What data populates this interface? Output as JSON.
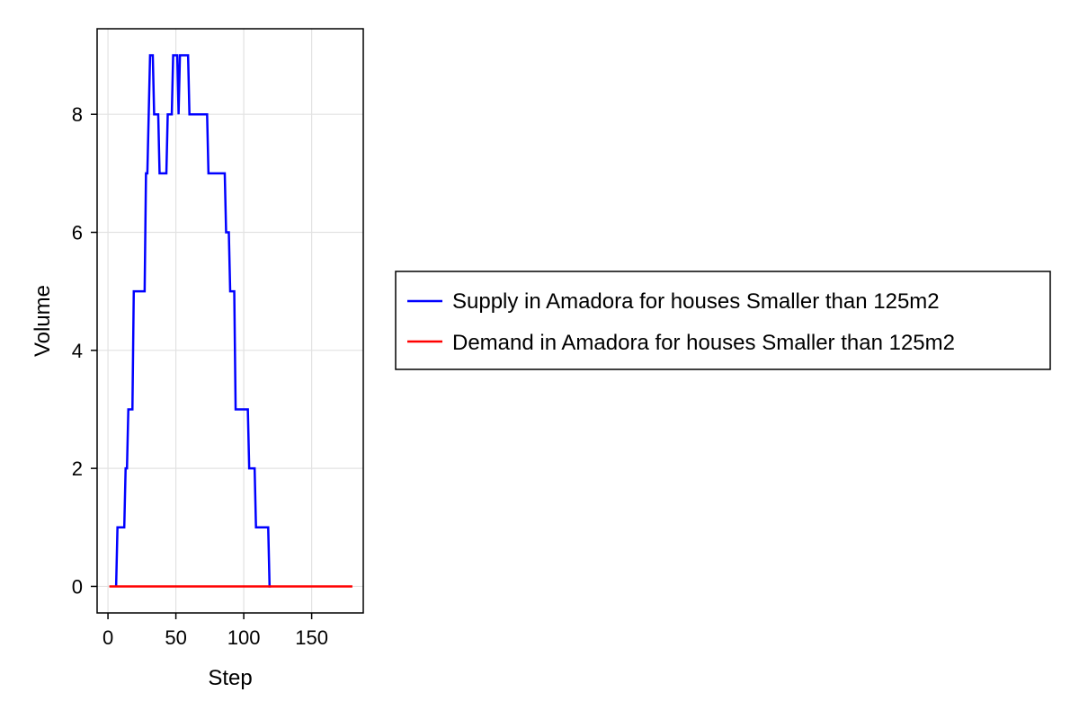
{
  "chart_data": {
    "type": "line",
    "xlabel": "Step",
    "ylabel": "Volume",
    "xlim": [
      -8,
      188
    ],
    "ylim": [
      -0.45,
      9.45
    ],
    "xticks": [
      0,
      50,
      100,
      150
    ],
    "yticks": [
      0,
      2,
      4,
      6,
      8
    ],
    "xtick_labels": [
      "0",
      "50",
      "100",
      "150"
    ],
    "ytick_labels": [
      "0",
      "2",
      "4",
      "6",
      "8"
    ],
    "grid": true,
    "legend_position": "right",
    "series": [
      {
        "name": "Supply in Amadora for houses Smaller than 125m2",
        "color": "#0000ff",
        "step": true,
        "x": [
          6,
          7,
          12,
          13,
          14,
          15,
          18,
          19,
          27,
          28,
          29,
          30,
          31,
          33,
          34,
          37,
          38,
          43,
          44,
          47,
          48,
          50,
          51,
          52,
          53,
          55,
          56,
          59,
          60,
          73,
          74,
          86,
          87,
          89,
          90,
          93,
          94,
          103,
          104,
          108,
          109,
          118,
          119,
          120
        ],
        "y": [
          0,
          1,
          1,
          2,
          2,
          3,
          3,
          5,
          5,
          7,
          7,
          8,
          9,
          9,
          8,
          8,
          7,
          7,
          8,
          8,
          9,
          9,
          9,
          8,
          9,
          9,
          9,
          9,
          8,
          8,
          7,
          7,
          6,
          6,
          5,
          5,
          3,
          3,
          2,
          2,
          1,
          1,
          0,
          0
        ]
      },
      {
        "name": "Demand in Amadora for houses Smaller than 125m2",
        "color": "#ff0000",
        "step": false,
        "x": [
          1,
          180
        ],
        "y": [
          0,
          0
        ]
      }
    ]
  }
}
